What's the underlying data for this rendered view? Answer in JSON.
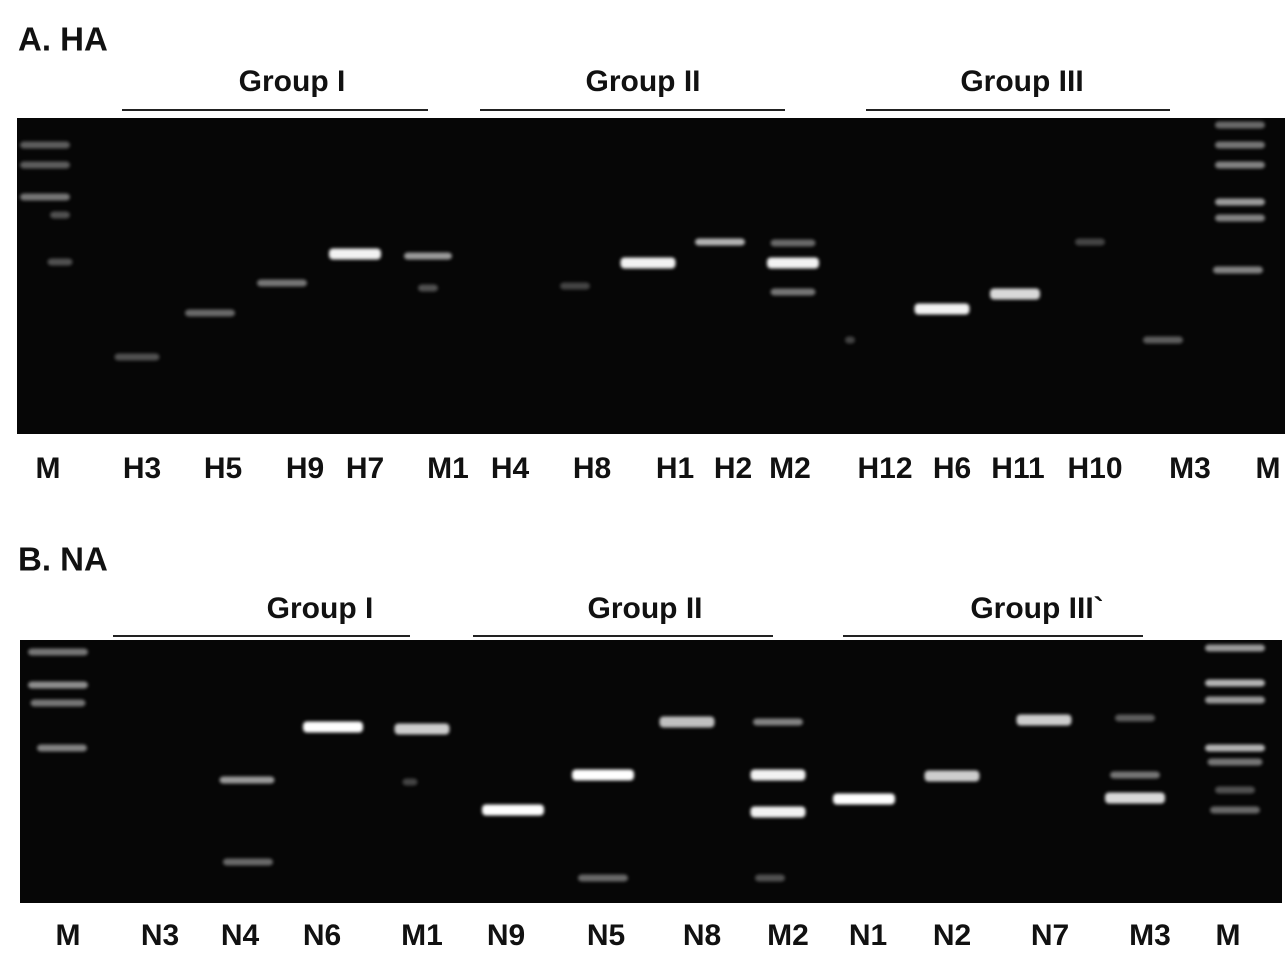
{
  "panels": [
    {
      "title": "A. HA",
      "groups": [
        "Group I",
        "Group II",
        "Group III"
      ],
      "lanes": [
        "M",
        "H3",
        "H5",
        "H9",
        "H7",
        "M1",
        "H4",
        "H8",
        "H1",
        "H2",
        "M2",
        "H12",
        "H6",
        "H11",
        "H10",
        "M3",
        "M"
      ]
    },
    {
      "title": "B. NA",
      "groups": [
        "Group I",
        "Group II",
        "Group III`"
      ],
      "lanes": [
        "M",
        "N3",
        "N4",
        "N6",
        "M1",
        "N9",
        "N5",
        "N8",
        "M2",
        "N1",
        "N2",
        "N7",
        "M3",
        "M"
      ]
    }
  ]
}
